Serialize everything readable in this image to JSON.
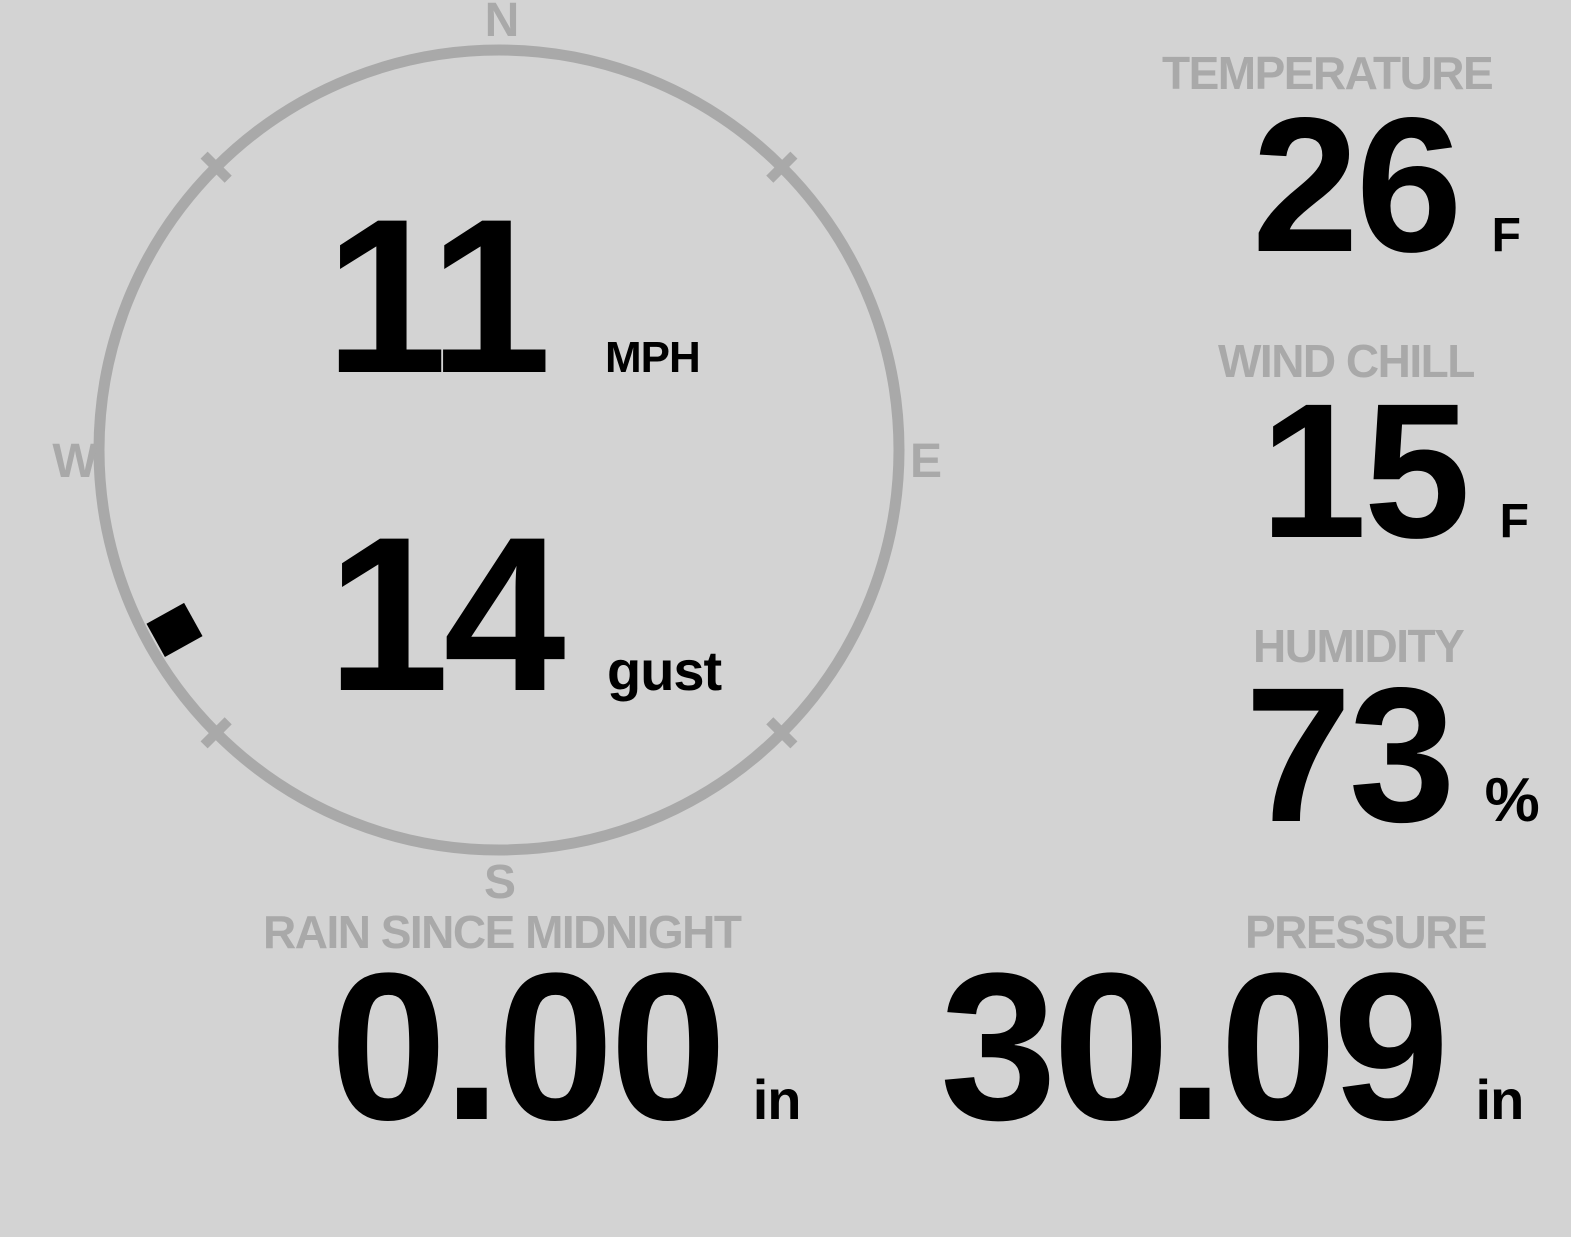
{
  "colors": {
    "background": "#d3d3d3",
    "muted_gray": "#a9a9a9",
    "ink": "#000000"
  },
  "compass": {
    "cardinals": {
      "north": "N",
      "east": "E",
      "south": "S",
      "west": "W"
    },
    "wind_direction_deg": 241
  },
  "wind": {
    "speed": {
      "value": "11",
      "unit": "MPH"
    },
    "gust": {
      "value": "14",
      "unit": "gust"
    }
  },
  "metrics": {
    "temperature": {
      "label": "TEMPERATURE",
      "value": "26",
      "unit": "F"
    },
    "wind_chill": {
      "label": "WIND CHILL",
      "value": "15",
      "unit": "F"
    },
    "humidity": {
      "label": "HUMIDITY",
      "value": "73",
      "unit": "%"
    },
    "rain": {
      "label": "RAIN SINCE MIDNIGHT",
      "value": "0.00",
      "unit": "in"
    },
    "pressure": {
      "label": "PRESSURE",
      "value": "30.09",
      "unit": "in"
    }
  }
}
